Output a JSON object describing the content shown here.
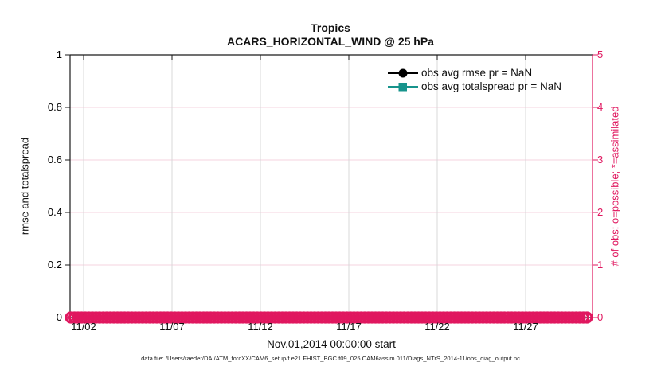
{
  "figure": {
    "title": "Tropics",
    "subtitle": "ACARS_HORIZONTAL_WIND @ 25 hPa",
    "caption": "data file: /Users/raeder/DAI/ATM_forcXX/CAM6_setup/f.e21.FHIST_BGC.f09_025.CAM6assim.011/Diags_NTrS_2014-11/obs_diag_output.nc"
  },
  "axes": {
    "left": {
      "label": "rmse and totalspread",
      "ticks": [
        "1",
        "0.8",
        "0.6",
        "0.4",
        "0.2",
        "0"
      ],
      "color": "#000000"
    },
    "right": {
      "label": "# of obs: o=possible; *=assimilated",
      "ticks": [
        "5",
        "4",
        "3",
        "2",
        "1",
        "0"
      ],
      "color": "#E0175F"
    },
    "x": {
      "label": "Nov.01,2014 00:00:00 start",
      "ticks": [
        "11/02",
        "11/07",
        "11/12",
        "11/17",
        "11/22",
        "11/27"
      ]
    }
  },
  "legend": {
    "entries": [
      {
        "label": "obs avg rmse pr = NaN",
        "color": "#000000",
        "marker": "circle"
      },
      {
        "label": "obs avg totalspread pr = NaN",
        "color": "#17948C",
        "marker": "square"
      }
    ]
  },
  "colors": {
    "accent_pink": "#E0175F",
    "grid_vertical": "#D8D8D8",
    "grid_horizontal": "#F5D3DF",
    "spine_black": "#1a1a1a"
  },
  "chart_data": {
    "type": "line",
    "title": "Tropics",
    "subtitle": "ACARS_HORIZONTAL_WIND @ 25 hPa",
    "xlabel": "Nov.01,2014 00:00:00 start",
    "ylabel_left": "rmse and totalspread",
    "ylabel_right": "# of obs: o=possible; *=assimilated",
    "x_ticks": [
      "11/02",
      "11/07",
      "11/12",
      "11/17",
      "11/22",
      "11/27"
    ],
    "x_range": [
      "11/01",
      "11/30"
    ],
    "ylim_left": [
      0,
      1
    ],
    "ylim_right": [
      0,
      5
    ],
    "grid": true,
    "legend_position": "upper-right-inside",
    "series": [
      {
        "name": "obs avg rmse pr = NaN",
        "marker": "circle",
        "color": "#000000",
        "values": "NaN (no curve plotted)"
      },
      {
        "name": "obs avg totalspread pr = NaN",
        "marker": "square",
        "color": "#17948C",
        "values": "NaN (no curve plotted)"
      }
    ],
    "obs_count_series": {
      "name": "# of obs (o=possible, *=assimilated)",
      "color": "#E0175F",
      "markers": [
        "o",
        "*"
      ],
      "value_constant": 0,
      "from": "11/01",
      "to": "11/30"
    }
  }
}
